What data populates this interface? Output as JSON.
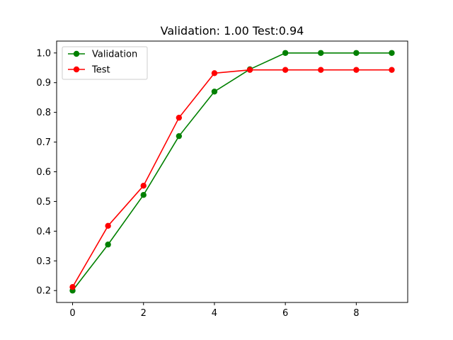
{
  "chart_data": {
    "type": "line",
    "title": "Validation: 1.00 Test:0.94",
    "xlabel": "",
    "ylabel": "",
    "x": [
      0,
      1,
      2,
      3,
      4,
      5,
      6,
      7,
      8,
      9
    ],
    "xlim": [
      -0.45,
      9.45
    ],
    "ylim": [
      0.16,
      1.04
    ],
    "xticks": [
      0,
      2,
      4,
      6,
      8
    ],
    "yticks": [
      0.2,
      0.3,
      0.4,
      0.5,
      0.6,
      0.7,
      0.8,
      0.9,
      1.0
    ],
    "xtick_labels": [
      "0",
      "2",
      "4",
      "6",
      "8"
    ],
    "ytick_labels": [
      "0.2",
      "0.3",
      "0.4",
      "0.5",
      "0.6",
      "0.7",
      "0.8",
      "0.9",
      "1.0"
    ],
    "grid": false,
    "legend_position": "top-left",
    "series": [
      {
        "name": "Validation",
        "color": "#008000",
        "marker": "circle",
        "values": [
          0.2,
          0.355,
          0.522,
          0.72,
          0.87,
          0.945,
          1.0,
          1.0,
          1.0,
          1.0
        ]
      },
      {
        "name": "Test",
        "color": "#ff0000",
        "marker": "circle",
        "values": [
          0.212,
          0.418,
          0.553,
          0.782,
          0.932,
          0.943,
          0.943,
          0.943,
          0.943,
          0.943
        ]
      }
    ]
  }
}
